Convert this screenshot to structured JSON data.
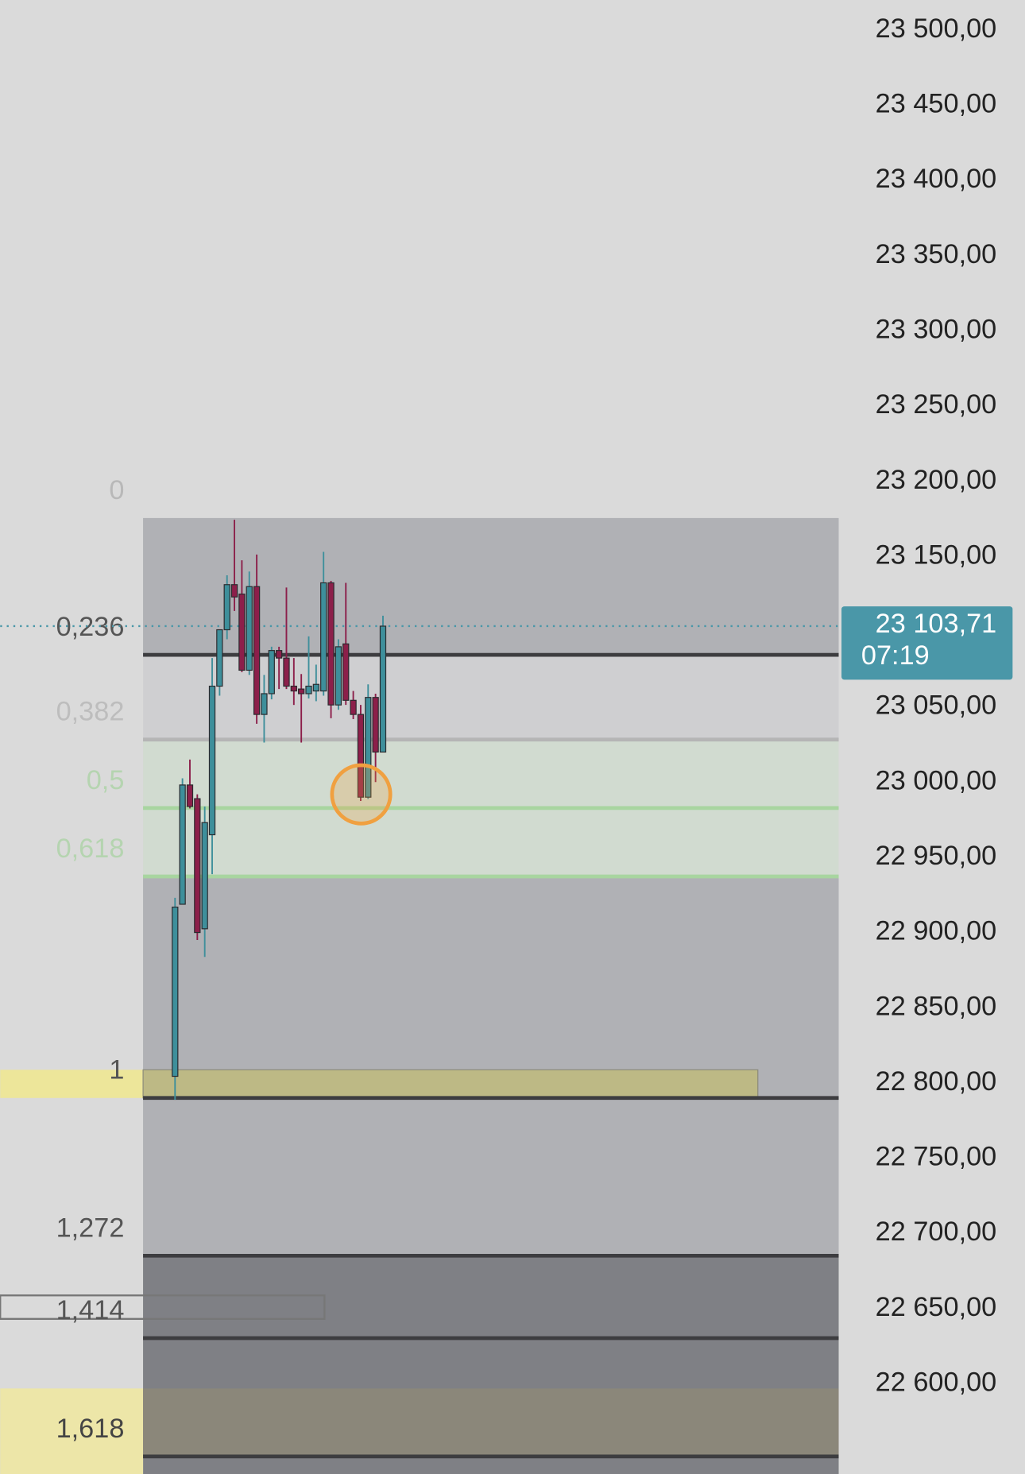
{
  "chart_data": {
    "type": "candlestick",
    "ylim": [
      22540,
      23520
    ],
    "yticks": [
      {
        "value": 23500,
        "label": "23 500,00"
      },
      {
        "value": 23450,
        "label": "23 450,00"
      },
      {
        "value": 23400,
        "label": "23 400,00"
      },
      {
        "value": 23350,
        "label": "23 350,00"
      },
      {
        "value": 23300,
        "label": "23 300,00"
      },
      {
        "value": 23250,
        "label": "23 250,00"
      },
      {
        "value": 23200,
        "label": "23 200,00"
      },
      {
        "value": 23150,
        "label": "23 150,00"
      },
      {
        "value": 23050,
        "label": "23 050,00"
      },
      {
        "value": 23000,
        "label": "23 000,00"
      },
      {
        "value": 22950,
        "label": "22 950,00"
      },
      {
        "value": 22900,
        "label": "22 900,00"
      },
      {
        "value": 22850,
        "label": "22 850,00"
      },
      {
        "value": 22800,
        "label": "22 800,00"
      },
      {
        "value": 22750,
        "label": "22 750,00"
      },
      {
        "value": 22700,
        "label": "22 700,00"
      },
      {
        "value": 22650,
        "label": "22 650,00"
      },
      {
        "value": 22600,
        "label": "22 600,00"
      }
    ],
    "current_price": {
      "value": 23103.71,
      "label": "23 103,71",
      "countdown": "07:19",
      "color": "#4a97a8"
    },
    "up_color": "#3e8f9b",
    "down_color": "#8c1f4a",
    "open": [
      22804.4,
      22918.8,
      22998.1,
      22989.0,
      22902.5,
      22965.0,
      23063.8,
      23101.3,
      23131.3,
      23125.0,
      23074.4,
      23130.0,
      23045.0,
      23058.8,
      23087.5,
      23082.5,
      23063.8,
      23061.9,
      23058.8,
      23060.6,
      23060.6,
      23132.5,
      23051.3,
      23091.9,
      23054.4,
      23045.0,
      22990.0,
      23056.3,
      23020.0
    ],
    "high": [
      22923.1,
      23002.5,
      23015.0,
      22991.9,
      22983.8,
      23082.5,
      23098.1,
      23137.5,
      23174.4,
      23147.5,
      23140.0,
      23151.3,
      23071.3,
      23090.0,
      23090.0,
      23129.4,
      23082.5,
      23071.9,
      23096.9,
      23078.1,
      23153.1,
      23133.8,
      23095.0,
      23132.5,
      23060.6,
      23051.3,
      23065.0,
      23058.8,
      23110.6
    ],
    "low": [
      22788.8,
      22918.8,
      22982.5,
      22895.0,
      22883.8,
      22938.8,
      23057.5,
      23095.0,
      23113.8,
      23073.1,
      23071.3,
      23038.8,
      23026.3,
      23055.0,
      23061.9,
      23061.9,
      23051.3,
      23026.3,
      23055.6,
      23053.8,
      23057.5,
      23042.5,
      23048.1,
      23051.3,
      23041.9,
      22987.5,
      22988.8,
      23000.0,
      23020.0
    ],
    "close": [
      22916.9,
      22998.1,
      22983.8,
      22900.0,
      22973.1,
      23063.8,
      23101.3,
      23131.3,
      23123.1,
      23074.4,
      23130.0,
      23045.0,
      23058.8,
      23087.5,
      23082.5,
      23063.8,
      23060.6,
      23058.8,
      23063.8,
      23065.0,
      23132.5,
      23051.3,
      23090.0,
      23054.4,
      23045.0,
      22990.0,
      23056.3,
      23020.0,
      23103.7
    ],
    "fib": {
      "start": 23175.6,
      "end": 22790,
      "levels": [
        {
          "ratio": 0,
          "label_color": "#b8b8b8",
          "line_color": "none",
          "fill": "#b0b1b5"
        },
        {
          "ratio": {
            "value": 0.236,
            "label": "0,236"
          },
          "label_color": "#555555",
          "line_color": "#3d3d40",
          "fill": "#cfcfd1"
        },
        {
          "ratio": {
            "value": 0.382,
            "label": "0,382"
          },
          "label_color": "#bdbdbd",
          "line_color": "#b5b5b5",
          "fill": "#d1dbd0"
        },
        {
          "ratio": {
            "value": 0.5,
            "label": "0,5"
          },
          "label_color": "#b5d4b0",
          "line_color": "#a8d5a0",
          "fill": "#d1dbd0"
        },
        {
          "ratio": {
            "value": 0.618,
            "label": "0,618"
          },
          "label_color": "#b5d4b0",
          "line_color": "#a8d5a0",
          "fill": "#b0b1b5"
        },
        {
          "ratio": 1,
          "label_color": "#555555",
          "line_color": "#3d3d40",
          "fill": "#b0b1b5"
        },
        {
          "ratio": {
            "value": 1.272,
            "label": "1,272"
          },
          "label_color": "#555555",
          "line_color": "#3d3d40",
          "fill": "#7f8085"
        },
        {
          "ratio": {
            "value": 1.414,
            "label": "1,414"
          },
          "label_color": "#555555",
          "line_color": "#3d3d40",
          "fill": "#7f8085"
        },
        {
          "ratio": {
            "value": 1.618,
            "label": "1,618"
          },
          "label_color": "#444444",
          "line_color": "#3d3d40",
          "fill": "#7f8085"
        }
      ]
    }
  }
}
